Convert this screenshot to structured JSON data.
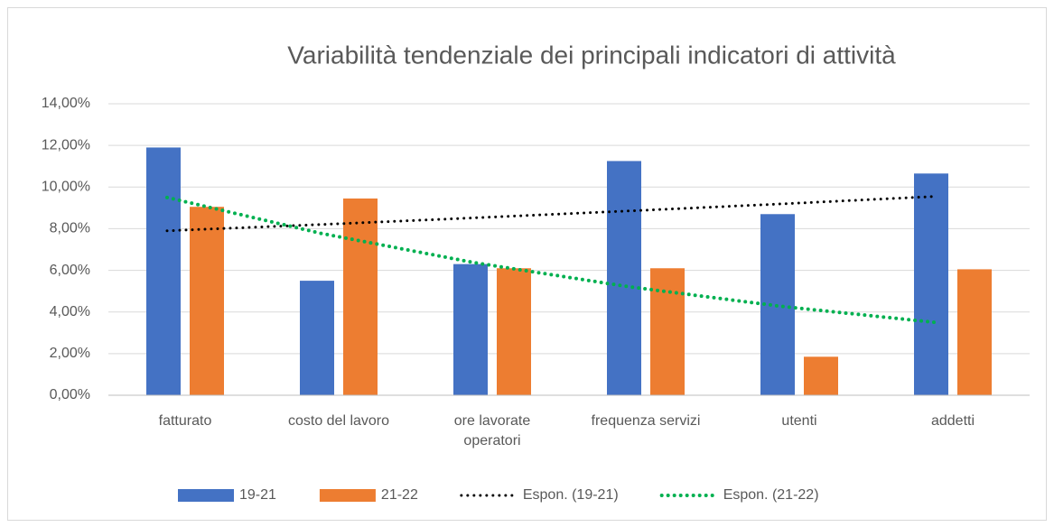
{
  "chart_data": {
    "type": "bar",
    "title": "Variabilità tendenziale dei principali indicatori di attività",
    "categories": [
      "fatturato",
      "costo del lavoro",
      "ore lavorate operatori",
      "frequenza servizi",
      "utenti",
      "addetti"
    ],
    "series": [
      {
        "name": "19-21",
        "color": "#4472c4",
        "values": [
          11.9,
          5.5,
          6.3,
          11.25,
          8.7,
          10.65
        ]
      },
      {
        "name": "21-22",
        "color": "#ed7d31",
        "values": [
          9.05,
          9.45,
          6.1,
          6.1,
          1.85,
          6.05
        ]
      },
      {
        "name": "Espon. (19-21)",
        "type": "line",
        "color": "#000000",
        "values": [
          7.9,
          8.2,
          8.52,
          8.85,
          9.19,
          9.55
        ]
      },
      {
        "name": "Espon. (21-22)",
        "type": "line",
        "color": "#00b050",
        "values": [
          9.5,
          7.78,
          6.37,
          5.22,
          4.27,
          3.5
        ]
      }
    ],
    "ylim": [
      0,
      14
    ],
    "yticks": [
      {
        "value": 0,
        "label": "0,00%"
      },
      {
        "value": 2,
        "label": "2,00%"
      },
      {
        "value": 4,
        "label": "4,00%"
      },
      {
        "value": 6,
        "label": "6,00%"
      },
      {
        "value": 8,
        "label": "8,00%"
      },
      {
        "value": 10,
        "label": "10,00%"
      },
      {
        "value": 12,
        "label": "12,00%"
      },
      {
        "value": 14,
        "label": "14,00%"
      }
    ],
    "grid": true,
    "legend": "bottom"
  }
}
